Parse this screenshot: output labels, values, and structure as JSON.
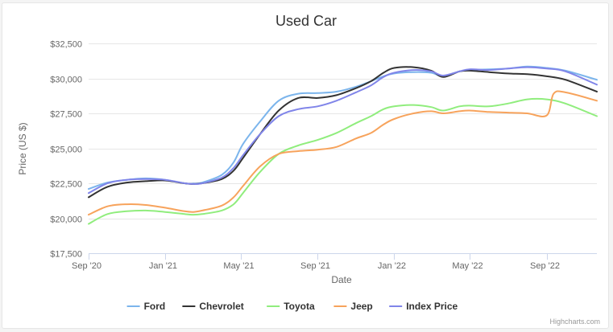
{
  "chart_data": {
    "type": "line",
    "title": "Used Car",
    "xlabel": "Date",
    "ylabel": "Price (US $)",
    "ylim": [
      17500,
      32500
    ],
    "y_ticks": [
      {
        "value": 17500,
        "label": "$17,500"
      },
      {
        "value": 20000,
        "label": "$20,000"
      },
      {
        "value": 22500,
        "label": "$22,500"
      },
      {
        "value": 25000,
        "label": "$25,000"
      },
      {
        "value": 27500,
        "label": "$27,500"
      },
      {
        "value": 30000,
        "label": "$30,000"
      },
      {
        "value": 32500,
        "label": "$32,500"
      }
    ],
    "x_ticks": [
      {
        "date": "2020-09-01",
        "label": "Sep '20"
      },
      {
        "date": "2021-01-01",
        "label": "Jan '21"
      },
      {
        "date": "2021-05-01",
        "label": "May '21"
      },
      {
        "date": "2021-09-01",
        "label": "Sep '21"
      },
      {
        "date": "2022-01-01",
        "label": "Jan '22"
      },
      {
        "date": "2022-05-01",
        "label": "May '22"
      },
      {
        "date": "2022-09-01",
        "label": "Sep '22"
      }
    ],
    "xlim": [
      "2020-09-01",
      "2022-11-20"
    ],
    "grid": "horizontal",
    "legend_position": "bottom",
    "credits": "Highcharts.com",
    "series": [
      {
        "name": "Ford",
        "color": "#7cb5ec",
        "points": [
          [
            "2020-09-01",
            22100
          ],
          [
            "2020-10-01",
            22550
          ],
          [
            "2020-11-01",
            22750
          ],
          [
            "2020-12-01",
            22850
          ],
          [
            "2021-01-01",
            22750
          ],
          [
            "2021-02-01",
            22500
          ],
          [
            "2021-02-15",
            22480
          ],
          [
            "2021-03-01",
            22550
          ],
          [
            "2021-04-01",
            23100
          ],
          [
            "2021-04-20",
            24000
          ],
          [
            "2021-05-05",
            25300
          ],
          [
            "2021-06-01",
            26900
          ],
          [
            "2021-07-01",
            28400
          ],
          [
            "2021-08-01",
            28900
          ],
          [
            "2021-09-01",
            28950
          ],
          [
            "2021-10-01",
            29050
          ],
          [
            "2021-11-01",
            29400
          ],
          [
            "2021-11-25",
            29800
          ],
          [
            "2021-12-15",
            30150
          ],
          [
            "2022-01-01",
            30350
          ],
          [
            "2022-02-01",
            30450
          ],
          [
            "2022-03-01",
            30400
          ],
          [
            "2022-03-20",
            30150
          ],
          [
            "2022-04-15",
            30500
          ],
          [
            "2022-05-01",
            30600
          ],
          [
            "2022-06-01",
            30650
          ],
          [
            "2022-07-01",
            30700
          ],
          [
            "2022-08-01",
            30850
          ],
          [
            "2022-09-01",
            30750
          ],
          [
            "2022-10-01",
            30550
          ],
          [
            "2022-11-20",
            29900
          ]
        ]
      },
      {
        "name": "Chevrolet",
        "color": "#333333",
        "points": [
          [
            "2020-09-01",
            21500
          ],
          [
            "2020-10-01",
            22250
          ],
          [
            "2020-11-01",
            22550
          ],
          [
            "2020-12-01",
            22650
          ],
          [
            "2021-01-01",
            22700
          ],
          [
            "2021-02-01",
            22500
          ],
          [
            "2021-02-15",
            22450
          ],
          [
            "2021-03-01",
            22500
          ],
          [
            "2021-04-01",
            22800
          ],
          [
            "2021-04-20",
            23400
          ],
          [
            "2021-05-05",
            24300
          ],
          [
            "2021-06-01",
            26000
          ],
          [
            "2021-07-01",
            27700
          ],
          [
            "2021-08-01",
            28600
          ],
          [
            "2021-09-01",
            28600
          ],
          [
            "2021-10-01",
            28800
          ],
          [
            "2021-11-01",
            29300
          ],
          [
            "2021-11-25",
            29800
          ],
          [
            "2021-12-15",
            30400
          ],
          [
            "2022-01-01",
            30750
          ],
          [
            "2022-02-01",
            30800
          ],
          [
            "2022-03-01",
            30550
          ],
          [
            "2022-03-20",
            30100
          ],
          [
            "2022-04-15",
            30500
          ],
          [
            "2022-05-01",
            30550
          ],
          [
            "2022-06-01",
            30450
          ],
          [
            "2022-07-01",
            30350
          ],
          [
            "2022-08-01",
            30300
          ],
          [
            "2022-09-01",
            30150
          ],
          [
            "2022-10-01",
            29900
          ],
          [
            "2022-11-20",
            29050
          ]
        ]
      },
      {
        "name": "Toyota",
        "color": "#90ed7d",
        "points": [
          [
            "2020-09-01",
            19600
          ],
          [
            "2020-10-01",
            20300
          ],
          [
            "2020-11-01",
            20500
          ],
          [
            "2020-12-01",
            20550
          ],
          [
            "2021-01-01",
            20450
          ],
          [
            "2021-02-01",
            20300
          ],
          [
            "2021-02-15",
            20250
          ],
          [
            "2021-03-01",
            20300
          ],
          [
            "2021-04-01",
            20550
          ],
          [
            "2021-04-20",
            21000
          ],
          [
            "2021-05-05",
            21800
          ],
          [
            "2021-06-01",
            23300
          ],
          [
            "2021-07-01",
            24600
          ],
          [
            "2021-08-01",
            25200
          ],
          [
            "2021-09-01",
            25600
          ],
          [
            "2021-10-01",
            26100
          ],
          [
            "2021-11-01",
            26800
          ],
          [
            "2021-11-25",
            27300
          ],
          [
            "2021-12-15",
            27800
          ],
          [
            "2022-01-01",
            28000
          ],
          [
            "2022-02-01",
            28100
          ],
          [
            "2022-03-01",
            27950
          ],
          [
            "2022-03-20",
            27700
          ],
          [
            "2022-04-15",
            28000
          ],
          [
            "2022-05-01",
            28050
          ],
          [
            "2022-06-01",
            28000
          ],
          [
            "2022-07-01",
            28200
          ],
          [
            "2022-08-01",
            28500
          ],
          [
            "2022-09-01",
            28500
          ],
          [
            "2022-10-01",
            28200
          ],
          [
            "2022-11-20",
            27300
          ]
        ]
      },
      {
        "name": "Jeep",
        "color": "#f7a35c",
        "points": [
          [
            "2020-09-01",
            20250
          ],
          [
            "2020-10-01",
            20850
          ],
          [
            "2020-11-01",
            21000
          ],
          [
            "2020-12-01",
            20950
          ],
          [
            "2021-01-01",
            20750
          ],
          [
            "2021-02-01",
            20500
          ],
          [
            "2021-02-15",
            20450
          ],
          [
            "2021-03-01",
            20550
          ],
          [
            "2021-04-01",
            20900
          ],
          [
            "2021-04-20",
            21500
          ],
          [
            "2021-05-05",
            22300
          ],
          [
            "2021-06-01",
            23700
          ],
          [
            "2021-07-01",
            24600
          ],
          [
            "2021-08-01",
            24800
          ],
          [
            "2021-09-01",
            24900
          ],
          [
            "2021-10-01",
            25100
          ],
          [
            "2021-11-01",
            25700
          ],
          [
            "2021-11-25",
            26100
          ],
          [
            "2021-12-15",
            26700
          ],
          [
            "2022-01-01",
            27100
          ],
          [
            "2022-02-01",
            27500
          ],
          [
            "2022-03-01",
            27650
          ],
          [
            "2022-03-20",
            27500
          ],
          [
            "2022-04-15",
            27650
          ],
          [
            "2022-05-01",
            27700
          ],
          [
            "2022-06-01",
            27600
          ],
          [
            "2022-07-01",
            27550
          ],
          [
            "2022-08-01",
            27500
          ],
          [
            "2022-09-01",
            27350
          ],
          [
            "2022-09-12",
            28900
          ],
          [
            "2022-10-01",
            29000
          ],
          [
            "2022-11-20",
            28400
          ]
        ]
      },
      {
        "name": "Index Price",
        "color": "#8085e9",
        "points": [
          [
            "2020-09-01",
            21800
          ],
          [
            "2020-10-01",
            22500
          ],
          [
            "2020-11-01",
            22750
          ],
          [
            "2020-12-01",
            22800
          ],
          [
            "2021-01-01",
            22750
          ],
          [
            "2021-02-01",
            22500
          ],
          [
            "2021-02-15",
            22450
          ],
          [
            "2021-03-01",
            22500
          ],
          [
            "2021-04-01",
            22900
          ],
          [
            "2021-04-20",
            23600
          ],
          [
            "2021-05-05",
            24500
          ],
          [
            "2021-06-01",
            26000
          ],
          [
            "2021-07-01",
            27300
          ],
          [
            "2021-08-01",
            27800
          ],
          [
            "2021-09-01",
            28000
          ],
          [
            "2021-10-01",
            28400
          ],
          [
            "2021-11-01",
            29000
          ],
          [
            "2021-11-25",
            29500
          ],
          [
            "2021-12-15",
            30100
          ],
          [
            "2022-01-01",
            30400
          ],
          [
            "2022-02-01",
            30600
          ],
          [
            "2022-03-01",
            30500
          ],
          [
            "2022-03-20",
            30200
          ],
          [
            "2022-04-15",
            30500
          ],
          [
            "2022-05-01",
            30650
          ],
          [
            "2022-06-01",
            30600
          ],
          [
            "2022-07-01",
            30700
          ],
          [
            "2022-08-01",
            30800
          ],
          [
            "2022-09-01",
            30700
          ],
          [
            "2022-10-01",
            30500
          ],
          [
            "2022-11-20",
            29550
          ]
        ]
      }
    ]
  }
}
